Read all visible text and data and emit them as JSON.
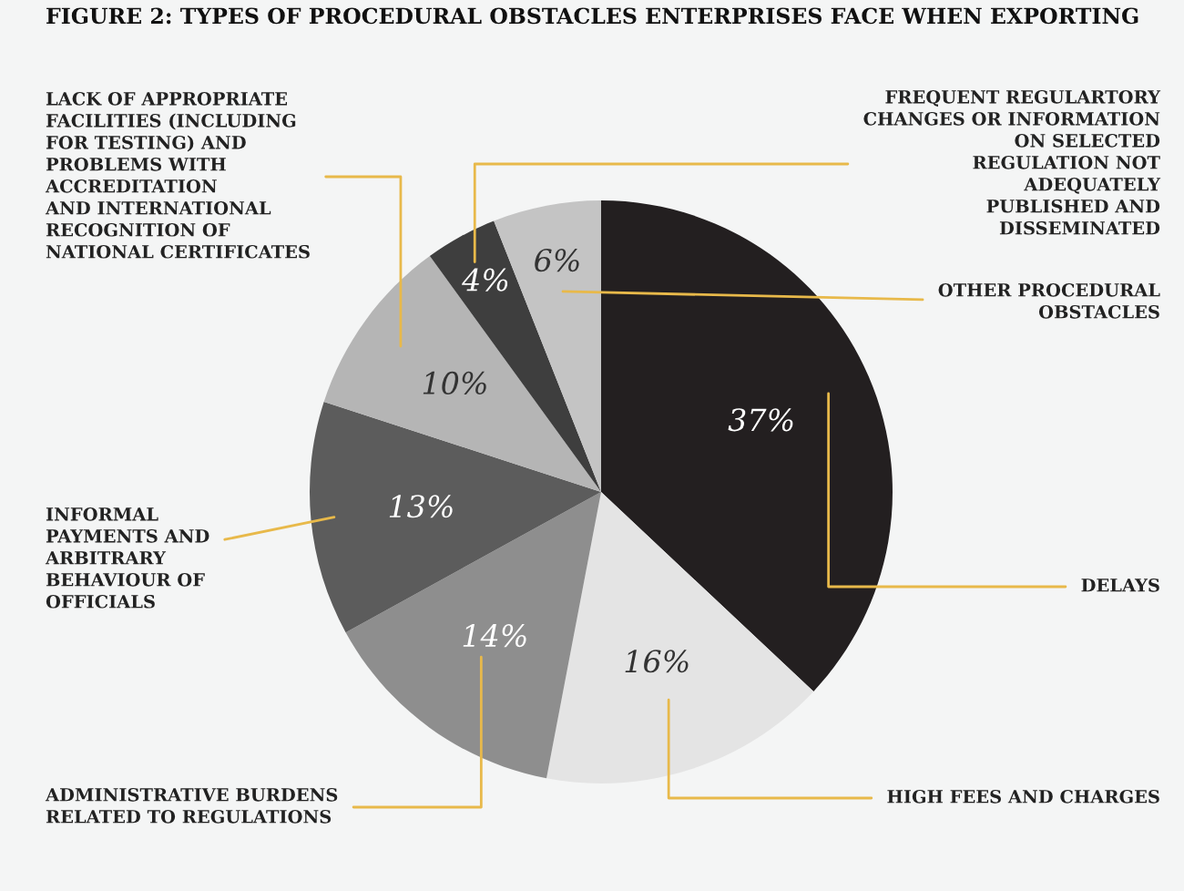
{
  "chart_data": {
    "type": "pie",
    "title": "FIGURE 2: TYPES OF PROCEDURAL OBSTACLES ENTERPRISES FACE WHEN EXPORTING",
    "categories": [
      "DELAYS",
      "HIGH FEES AND CHARGES",
      "ADMINISTRATIVE BURDENS\nRELATED TO REGULATIONS",
      "INFORMAL\nPAYMENTS AND\nARBITRARY\nBEHAVIOUR OF\nOFFICIALS",
      "LACK OF APPROPRIATE\nFACILITIES (INCLUDING\nFOR TESTING) AND\nPROBLEMS WITH\nACCREDITATION\nAND INTERNATIONAL\nRECOGNITION OF\nNATIONAL CERTIFICATES",
      "FREQUENT REGULARTORY\nCHANGES OR INFORMATION\nON SELECTED\nREGULATION NOT\nADEQUATELY\nPUBLISHED AND\nDISSEMINATED",
      "OTHER PROCEDURAL\nOBSTACLES"
    ],
    "values": [
      37,
      16,
      14,
      13,
      10,
      4,
      6
    ],
    "colors": [
      "#231f20",
      "#e4e4e4",
      "#8e8e8e",
      "#5c5c5c",
      "#b5b5b5",
      "#3e3e3e",
      "#c4c4c4"
    ],
    "value_labels": [
      "37%",
      "16%",
      "14%",
      "13%",
      "10%",
      "4%",
      "6%"
    ]
  }
}
